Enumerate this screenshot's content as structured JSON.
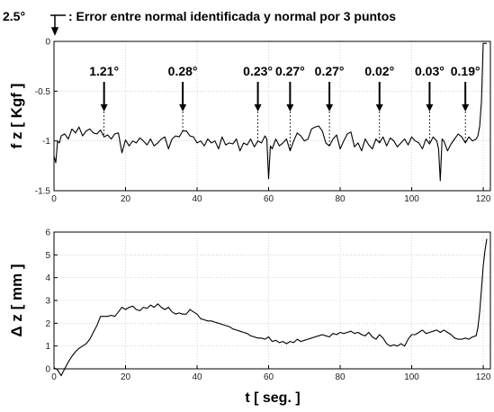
{
  "legend": {
    "symbol_label": "2.5°",
    "text": ": Error entre normal identificada y normal por 3 puntos"
  },
  "chart_data": [
    {
      "type": "line",
      "ylabel": "f z  [ Kgf ]",
      "xlabel": "",
      "xlim": [
        0,
        122
      ],
      "ylim": [
        -1.5,
        0
      ],
      "x_ticks": [
        0,
        20,
        40,
        60,
        80,
        100,
        120
      ],
      "y_ticks": [
        0,
        -0.5,
        -1,
        -1.5
      ],
      "grid": true,
      "series": [
        {
          "x": [
            0,
            0.5,
            1,
            1.5,
            2,
            3,
            4,
            5,
            6,
            7,
            8,
            9,
            10,
            11,
            12,
            13,
            14,
            15,
            16,
            17,
            18,
            19,
            20,
            21,
            22,
            23,
            24,
            25,
            26,
            27,
            28,
            29,
            30,
            31,
            32,
            33,
            34,
            35,
            36,
            37,
            38,
            39,
            40,
            41,
            42,
            43,
            44,
            45,
            46,
            47,
            48,
            49,
            50,
            51,
            52,
            53,
            54,
            55,
            56,
            57,
            58,
            59,
            59.5,
            60,
            60.5,
            61,
            62,
            63,
            64,
            65,
            66,
            67,
            68,
            69,
            70,
            71,
            72,
            73,
            74,
            75,
            76,
            77,
            78,
            79,
            80,
            81,
            82,
            83,
            84,
            85,
            86,
            87,
            88,
            89,
            90,
            91,
            92,
            93,
            94,
            95,
            96,
            97,
            98,
            99,
            100,
            101,
            102,
            103,
            104,
            105,
            106,
            107,
            107.5,
            108,
            108.5,
            109,
            110,
            111,
            112,
            113,
            114,
            115,
            116,
            117,
            118,
            118.5,
            119,
            119.5,
            120,
            120.5,
            121
          ],
          "y": [
            -1.15,
            -1.22,
            -1.0,
            -1.02,
            -0.95,
            -0.93,
            -0.98,
            -0.88,
            -0.92,
            -0.86,
            -0.95,
            -0.9,
            -0.88,
            -0.92,
            -0.93,
            -0.89,
            -0.96,
            -0.94,
            -0.98,
            -0.93,
            -0.92,
            -1.12,
            -0.99,
            -1.05,
            -1.0,
            -1.02,
            -0.97,
            -1.0,
            -1.04,
            -0.98,
            -1.05,
            -1.02,
            -0.98,
            -0.96,
            -1.08,
            -0.98,
            -0.95,
            -0.96,
            -0.9,
            -0.9,
            -0.95,
            -0.96,
            -1.02,
            -1.0,
            -1.05,
            -0.98,
            -1.02,
            -1.0,
            -1.08,
            -0.96,
            -1.04,
            -1.02,
            -1.03,
            -0.98,
            -1.1,
            -1.02,
            -1.04,
            -0.98,
            -1.06,
            -1.0,
            -1.02,
            -0.95,
            -0.98,
            -1.38,
            -1.05,
            -1.08,
            -0.98,
            -1.05,
            -1.02,
            -0.98,
            -1.1,
            -1.0,
            -0.92,
            -0.95,
            -1.0,
            -0.98,
            -0.88,
            -0.86,
            -0.85,
            -0.9,
            -1.02,
            -1.05,
            -0.98,
            -0.94,
            -1.08,
            -1.0,
            -0.93,
            -0.91,
            -1.06,
            -1.02,
            -1.1,
            -0.98,
            -1.04,
            -1.08,
            -0.98,
            -1.02,
            -0.96,
            -1.05,
            -0.97,
            -1.0,
            -1.06,
            -1.02,
            -0.98,
            -1.04,
            -0.96,
            -1.0,
            -1.02,
            -1.08,
            -0.98,
            -1.03,
            -0.96,
            -1.0,
            -1.08,
            -1.4,
            -0.98,
            -1.0,
            -1.1,
            -1.03,
            -0.98,
            -0.93,
            -0.96,
            -1.02,
            -0.96,
            -1.0,
            -0.98,
            -0.95,
            -0.85,
            -0.6,
            -0.02,
            -0.02,
            -0.02
          ]
        }
      ],
      "annotations": [
        {
          "x": 14,
          "label": "1.21°"
        },
        {
          "x": 36,
          "label": "0.28°"
        },
        {
          "x": 57,
          "label": "0.23°"
        },
        {
          "x": 66,
          "label": "0.27°"
        },
        {
          "x": 77,
          "label": "0.27°"
        },
        {
          "x": 91,
          "label": "0.02°"
        },
        {
          "x": 105,
          "label": "0.03°"
        },
        {
          "x": 115,
          "label": "0.19°"
        }
      ]
    },
    {
      "type": "line",
      "ylabel": "Δ z  [ mm ]",
      "xlabel": "t [ seg. ]",
      "xlim": [
        0,
        122
      ],
      "ylim": [
        0,
        6
      ],
      "x_ticks": [
        0,
        20,
        40,
        60,
        80,
        100,
        120
      ],
      "y_ticks": [
        0,
        1,
        2,
        3,
        4,
        5,
        6
      ],
      "grid": true,
      "series": [
        {
          "x": [
            0,
            1,
            2,
            3,
            4,
            5,
            6,
            7,
            8,
            9,
            10,
            11,
            12,
            13,
            14,
            15,
            16,
            17,
            18,
            19,
            20,
            21,
            22,
            23,
            24,
            25,
            26,
            27,
            28,
            29,
            30,
            31,
            32,
            33,
            34,
            35,
            36,
            37,
            38,
            39,
            40,
            41,
            42,
            43,
            44,
            45,
            46,
            47,
            48,
            49,
            50,
            51,
            52,
            53,
            54,
            55,
            56,
            57,
            58,
            59,
            60,
            61,
            62,
            63,
            64,
            65,
            66,
            67,
            68,
            69,
            70,
            71,
            72,
            73,
            74,
            75,
            76,
            77,
            78,
            79,
            80,
            81,
            82,
            83,
            84,
            85,
            86,
            87,
            88,
            89,
            90,
            91,
            92,
            93,
            94,
            95,
            96,
            97,
            98,
            99,
            100,
            101,
            102,
            103,
            104,
            105,
            106,
            107,
            108,
            109,
            110,
            111,
            112,
            113,
            114,
            115,
            116,
            117,
            118,
            118.5,
            119,
            119.5,
            120,
            120.5,
            121
          ],
          "y": [
            0.05,
            -0.05,
            -0.3,
            0.0,
            0.3,
            0.55,
            0.75,
            0.9,
            1.0,
            1.1,
            1.3,
            1.6,
            1.9,
            2.3,
            2.3,
            2.3,
            2.35,
            2.3,
            2.5,
            2.7,
            2.6,
            2.7,
            2.75,
            2.6,
            2.55,
            2.7,
            2.65,
            2.8,
            2.7,
            2.85,
            2.7,
            2.6,
            2.7,
            2.5,
            2.4,
            2.45,
            2.4,
            2.4,
            2.6,
            2.5,
            2.4,
            2.2,
            2.15,
            2.1,
            2.1,
            2.05,
            2.0,
            1.95,
            1.9,
            1.85,
            1.75,
            1.7,
            1.65,
            1.6,
            1.55,
            1.45,
            1.4,
            1.35,
            1.35,
            1.3,
            1.4,
            1.2,
            1.25,
            1.15,
            1.2,
            1.1,
            1.2,
            1.15,
            1.3,
            1.2,
            1.25,
            1.3,
            1.35,
            1.4,
            1.45,
            1.5,
            1.45,
            1.4,
            1.55,
            1.5,
            1.6,
            1.55,
            1.6,
            1.65,
            1.55,
            1.6,
            1.5,
            1.45,
            1.6,
            1.4,
            1.3,
            1.5,
            1.35,
            1.1,
            1.0,
            1.05,
            1.0,
            1.1,
            1.0,
            1.3,
            1.5,
            1.5,
            1.6,
            1.7,
            1.55,
            1.6,
            1.65,
            1.7,
            1.6,
            1.7,
            1.6,
            1.5,
            1.35,
            1.3,
            1.3,
            1.35,
            1.3,
            1.4,
            1.45,
            1.8,
            2.5,
            3.5,
            4.5,
            5.2,
            5.7
          ]
        }
      ]
    }
  ]
}
